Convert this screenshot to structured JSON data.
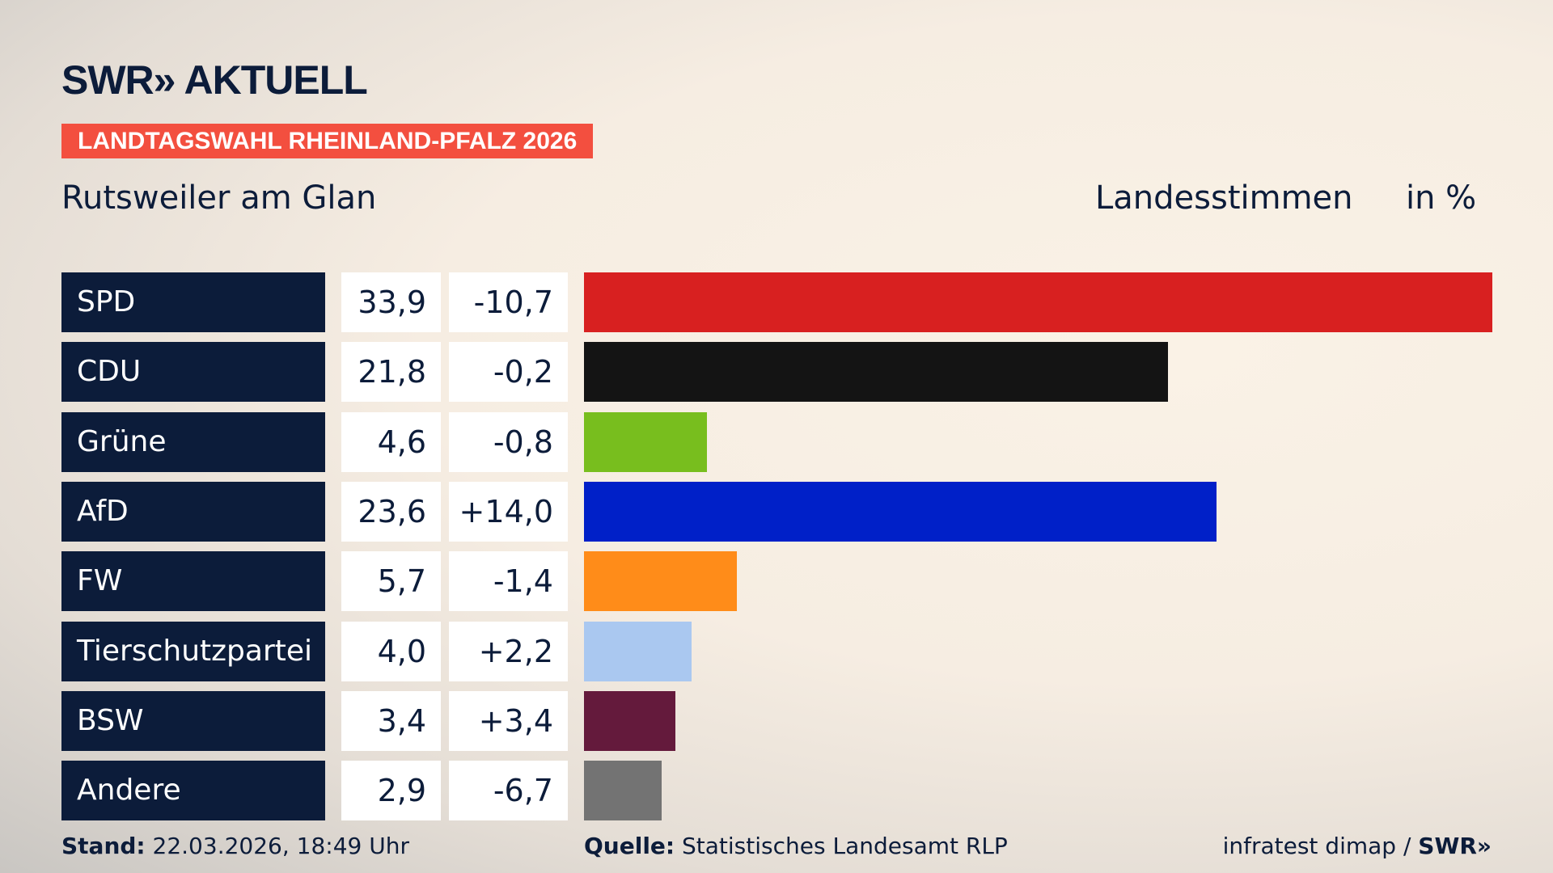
{
  "header": {
    "logo": "SWR» AKTUELL",
    "banner": "LANDTAGSWAHL RHEINLAND-PFALZ 2026",
    "location": "Rutsweiler am Glan",
    "vote_type": "Landesstimmen",
    "unit": "in %"
  },
  "chart_data": {
    "type": "bar",
    "orientation": "horizontal",
    "categories": [
      "SPD",
      "CDU",
      "Grüne",
      "AfD",
      "FW",
      "Tierschutzpartei",
      "BSW",
      "Andere"
    ],
    "values": [
      33.9,
      21.8,
      4.6,
      23.6,
      5.7,
      4.0,
      3.4,
      2.9
    ],
    "value_labels": [
      "33,9",
      "21,8",
      "4,6",
      "23,6",
      "5,7",
      "4,0",
      "3,4",
      "2,9"
    ],
    "change_labels": [
      "-10,7",
      "-0,2",
      "-0,8",
      "+14,0",
      "-1,4",
      "+2,2",
      "+3,4",
      "-6,7"
    ],
    "colors": [
      "#d82020",
      "#141414",
      "#78be1e",
      "#0020c8",
      "#ff8c19",
      "#aac8f0",
      "#641a3c",
      "#737373"
    ]
  },
  "footer": {
    "stand_label": "Stand:",
    "stand": "22.03.2026, 18:49 Uhr",
    "source_label": "Quelle:",
    "source": "Statistisches Landesamt RLP",
    "credit": "infratest dimap / ",
    "credit_logo": "SWR»"
  }
}
